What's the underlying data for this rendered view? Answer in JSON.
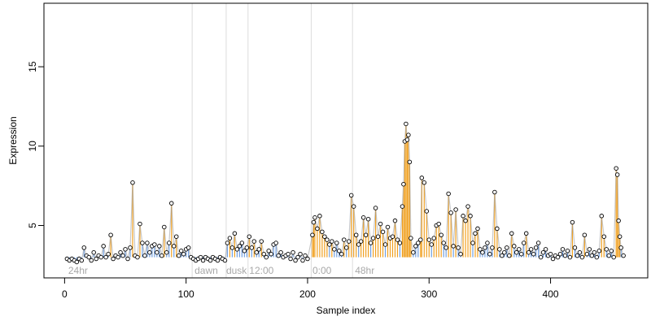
{
  "chart_data": {
    "type": "scatter",
    "xlabel": "Sample index",
    "ylabel": "Expression",
    "xlim": [
      -17,
      480
    ],
    "ylim": [
      1.7,
      19.0
    ],
    "xticks": [
      0,
      100,
      200,
      300,
      400
    ],
    "yticks": [
      5,
      10,
      15
    ],
    "baseline": 3.0,
    "colors": {
      "line": "#9a9a9a",
      "segment_low": "#6f9ee0",
      "segment_high": "#f0a020",
      "point_edge": "#000000",
      "point_fill": "#ffffff",
      "divider": "#dcdcdc",
      "annotation": "#a8a8a8"
    },
    "dividers": [
      105,
      133,
      151,
      203,
      237
    ],
    "annotations": [
      {
        "x": 3,
        "label": "24hr"
      },
      {
        "x": 107,
        "label": "dawn"
      },
      {
        "x": 133,
        "label": "dusk"
      },
      {
        "x": 152,
        "label": "12:00"
      },
      {
        "x": 204,
        "label": "0:00"
      },
      {
        "x": 239,
        "label": "48hr"
      }
    ],
    "points": [
      [
        2,
        2.9
      ],
      [
        4,
        2.8
      ],
      [
        6,
        2.9
      ],
      [
        8,
        2.8
      ],
      [
        10,
        2.7
      ],
      [
        12,
        2.9
      ],
      [
        14,
        2.8
      ],
      [
        16,
        3.6
      ],
      [
        18,
        3.1
      ],
      [
        20,
        3.0
      ],
      [
        22,
        2.8
      ],
      [
        24,
        3.3
      ],
      [
        26,
        2.9
      ],
      [
        28,
        3.1
      ],
      [
        30,
        3.0
      ],
      [
        32,
        3.7
      ],
      [
        34,
        3.0
      ],
      [
        36,
        3.2
      ],
      [
        38,
        4.4
      ],
      [
        40,
        2.9
      ],
      [
        42,
        3.1
      ],
      [
        44,
        3.0
      ],
      [
        46,
        3.3
      ],
      [
        48,
        3.1
      ],
      [
        50,
        3.5
      ],
      [
        52,
        2.9
      ],
      [
        54,
        3.6
      ],
      [
        56,
        7.7
      ],
      [
        58,
        3.1
      ],
      [
        60,
        3.0
      ],
      [
        62,
        5.1
      ],
      [
        64,
        3.9
      ],
      [
        66,
        3.1
      ],
      [
        68,
        3.9
      ],
      [
        70,
        3.3
      ],
      [
        72,
        3.7
      ],
      [
        74,
        3.8
      ],
      [
        76,
        3.3
      ],
      [
        78,
        3.7
      ],
      [
        80,
        3.1
      ],
      [
        82,
        4.9
      ],
      [
        84,
        3.3
      ],
      [
        86,
        3.9
      ],
      [
        88,
        6.4
      ],
      [
        90,
        3.7
      ],
      [
        92,
        4.3
      ],
      [
        94,
        3.1
      ],
      [
        96,
        3.4
      ],
      [
        98,
        3.2
      ],
      [
        100,
        3.5
      ],
      [
        102,
        3.6
      ],
      [
        104,
        3.0
      ],
      [
        106,
        2.9
      ],
      [
        108,
        2.8
      ],
      [
        110,
        2.9
      ],
      [
        112,
        3.0
      ],
      [
        114,
        2.8
      ],
      [
        116,
        3.0
      ],
      [
        118,
        2.9
      ],
      [
        120,
        2.8
      ],
      [
        122,
        3.0
      ],
      [
        124,
        2.9
      ],
      [
        126,
        2.8
      ],
      [
        128,
        3.0
      ],
      [
        130,
        2.9
      ],
      [
        132,
        2.8
      ],
      [
        134,
        3.9
      ],
      [
        136,
        4.2
      ],
      [
        138,
        3.6
      ],
      [
        140,
        4.5
      ],
      [
        142,
        3.5
      ],
      [
        144,
        3.7
      ],
      [
        146,
        3.9
      ],
      [
        148,
        3.4
      ],
      [
        150,
        3.6
      ],
      [
        152,
        4.3
      ],
      [
        154,
        3.6
      ],
      [
        156,
        4.0
      ],
      [
        158,
        3.3
      ],
      [
        160,
        3.5
      ],
      [
        162,
        4.0
      ],
      [
        164,
        3.2
      ],
      [
        166,
        3.0
      ],
      [
        168,
        3.4
      ],
      [
        170,
        3.2
      ],
      [
        172,
        3.8
      ],
      [
        174,
        3.9
      ],
      [
        176,
        3.1
      ],
      [
        178,
        3.3
      ],
      [
        180,
        3.0
      ],
      [
        182,
        3.1
      ],
      [
        184,
        3.2
      ],
      [
        186,
        2.9
      ],
      [
        188,
        3.3
      ],
      [
        190,
        2.8
      ],
      [
        192,
        3.0
      ],
      [
        194,
        3.2
      ],
      [
        196,
        2.8
      ],
      [
        198,
        3.1
      ],
      [
        200,
        2.9
      ],
      [
        204,
        4.4
      ],
      [
        205,
        5.2
      ],
      [
        206,
        5.5
      ],
      [
        208,
        4.8
      ],
      [
        210,
        5.6
      ],
      [
        212,
        4.6
      ],
      [
        214,
        4.3
      ],
      [
        216,
        4.1
      ],
      [
        218,
        3.8
      ],
      [
        220,
        4.0
      ],
      [
        222,
        3.5
      ],
      [
        224,
        3.9
      ],
      [
        226,
        3.4
      ],
      [
        228,
        3.2
      ],
      [
        230,
        4.1
      ],
      [
        232,
        3.6
      ],
      [
        234,
        4.0
      ],
      [
        236,
        6.9
      ],
      [
        238,
        6.2
      ],
      [
        240,
        4.4
      ],
      [
        242,
        3.8
      ],
      [
        244,
        4.0
      ],
      [
        246,
        5.5
      ],
      [
        248,
        4.4
      ],
      [
        250,
        5.4
      ],
      [
        252,
        3.9
      ],
      [
        254,
        4.2
      ],
      [
        256,
        6.1
      ],
      [
        258,
        4.3
      ],
      [
        260,
        5.1
      ],
      [
        262,
        4.6
      ],
      [
        264,
        3.8
      ],
      [
        266,
        4.9
      ],
      [
        268,
        4.2
      ],
      [
        270,
        4.3
      ],
      [
        272,
        5.3
      ],
      [
        274,
        4.1
      ],
      [
        276,
        3.9
      ],
      [
        278,
        6.2
      ],
      [
        279,
        7.6
      ],
      [
        280,
        10.3
      ],
      [
        281,
        11.4
      ],
      [
        282,
        10.4
      ],
      [
        283,
        10.7
      ],
      [
        284,
        9.0
      ],
      [
        285,
        4.2
      ],
      [
        287,
        3.3
      ],
      [
        289,
        3.7
      ],
      [
        291,
        3.9
      ],
      [
        293,
        4.1
      ],
      [
        294,
        8.0
      ],
      [
        296,
        7.7
      ],
      [
        298,
        5.9
      ],
      [
        300,
        4.1
      ],
      [
        302,
        3.8
      ],
      [
        304,
        4.2
      ],
      [
        306,
        5.0
      ],
      [
        308,
        5.1
      ],
      [
        310,
        4.4
      ],
      [
        312,
        3.9
      ],
      [
        314,
        3.6
      ],
      [
        316,
        7.0
      ],
      [
        318,
        5.8
      ],
      [
        320,
        3.7
      ],
      [
        322,
        6.0
      ],
      [
        324,
        3.6
      ],
      [
        326,
        3.2
      ],
      [
        328,
        5.6
      ],
      [
        330,
        5.3
      ],
      [
        332,
        6.2
      ],
      [
        334,
        5.6
      ],
      [
        336,
        3.9
      ],
      [
        338,
        4.5
      ],
      [
        340,
        4.8
      ],
      [
        342,
        3.5
      ],
      [
        344,
        3.3
      ],
      [
        346,
        3.6
      ],
      [
        348,
        3.9
      ],
      [
        350,
        3.2
      ],
      [
        352,
        3.6
      ],
      [
        354,
        7.1
      ],
      [
        356,
        4.8
      ],
      [
        358,
        3.5
      ],
      [
        360,
        3.1
      ],
      [
        362,
        3.3
      ],
      [
        364,
        3.6
      ],
      [
        366,
        3.1
      ],
      [
        368,
        4.5
      ],
      [
        370,
        3.7
      ],
      [
        372,
        3.3
      ],
      [
        374,
        3.5
      ],
      [
        376,
        3.2
      ],
      [
        378,
        3.9
      ],
      [
        380,
        4.5
      ],
      [
        382,
        3.3
      ],
      [
        384,
        3.5
      ],
      [
        386,
        3.2
      ],
      [
        388,
        3.6
      ],
      [
        390,
        3.9
      ],
      [
        392,
        3.0
      ],
      [
        394,
        3.3
      ],
      [
        396,
        3.5
      ],
      [
        398,
        3.1
      ],
      [
        400,
        3.2
      ],
      [
        402,
        2.9
      ],
      [
        404,
        3.1
      ],
      [
        406,
        3.0
      ],
      [
        408,
        3.2
      ],
      [
        410,
        3.5
      ],
      [
        412,
        3.1
      ],
      [
        414,
        3.4
      ],
      [
        416,
        3.0
      ],
      [
        418,
        5.2
      ],
      [
        420,
        3.6
      ],
      [
        422,
        3.1
      ],
      [
        424,
        3.3
      ],
      [
        426,
        3.0
      ],
      [
        428,
        4.4
      ],
      [
        430,
        3.2
      ],
      [
        432,
        3.5
      ],
      [
        434,
        3.1
      ],
      [
        436,
        3.3
      ],
      [
        438,
        3.0
      ],
      [
        440,
        3.4
      ],
      [
        442,
        5.6
      ],
      [
        444,
        4.3
      ],
      [
        446,
        3.5
      ],
      [
        448,
        3.1
      ],
      [
        450,
        3.4
      ],
      [
        452,
        3.0
      ],
      [
        454,
        8.6
      ],
      [
        455,
        8.2
      ],
      [
        456,
        5.3
      ],
      [
        457,
        4.3
      ],
      [
        458,
        3.6
      ],
      [
        460,
        3.1
      ]
    ]
  }
}
